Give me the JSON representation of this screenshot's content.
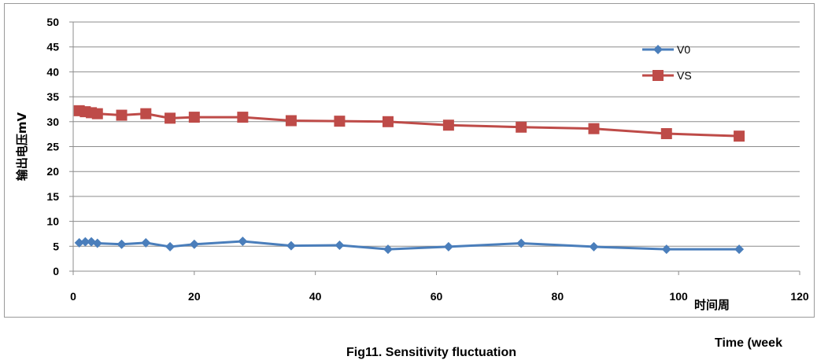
{
  "chart_data": {
    "type": "line",
    "ylabel": "输出电压mV",
    "xlabel": "时间周",
    "xlim": [
      0,
      120
    ],
    "ylim": [
      0,
      50
    ],
    "x_ticks": [
      0,
      20,
      40,
      60,
      80,
      100,
      120
    ],
    "y_ticks": [
      0,
      5,
      10,
      15,
      20,
      25,
      30,
      35,
      40,
      45,
      50
    ],
    "grid": "horizontal",
    "legend_position": "top-right",
    "series": [
      {
        "name": "V0",
        "color": "#4a7ebb",
        "marker": "diamond",
        "points": [
          [
            1,
            5.7
          ],
          [
            2,
            5.9
          ],
          [
            3,
            5.9
          ],
          [
            4,
            5.6
          ],
          [
            8,
            5.4
          ],
          [
            12,
            5.7
          ],
          [
            16,
            4.9
          ],
          [
            20,
            5.4
          ],
          [
            28,
            6.0
          ],
          [
            36,
            5.1
          ],
          [
            44,
            5.2
          ],
          [
            52,
            4.4
          ],
          [
            62,
            4.9
          ],
          [
            74,
            5.6
          ],
          [
            86,
            4.9
          ],
          [
            98,
            4.4
          ],
          [
            110,
            4.4
          ]
        ]
      },
      {
        "name": "VS",
        "color": "#be4b48",
        "marker": "square",
        "points": [
          [
            1,
            32.2
          ],
          [
            2,
            32.0
          ],
          [
            3,
            31.8
          ],
          [
            4,
            31.6
          ],
          [
            8,
            31.3
          ],
          [
            12,
            31.6
          ],
          [
            16,
            30.7
          ],
          [
            20,
            30.9
          ],
          [
            28,
            30.9
          ],
          [
            36,
            30.2
          ],
          [
            44,
            30.1
          ],
          [
            52,
            30.0
          ],
          [
            62,
            29.3
          ],
          [
            74,
            28.9
          ],
          [
            86,
            28.6
          ],
          [
            98,
            27.6
          ],
          [
            110,
            27.1
          ]
        ]
      }
    ]
  },
  "caption": "Fig11. Sensitivity fluctuation",
  "time_label": "Time (week"
}
